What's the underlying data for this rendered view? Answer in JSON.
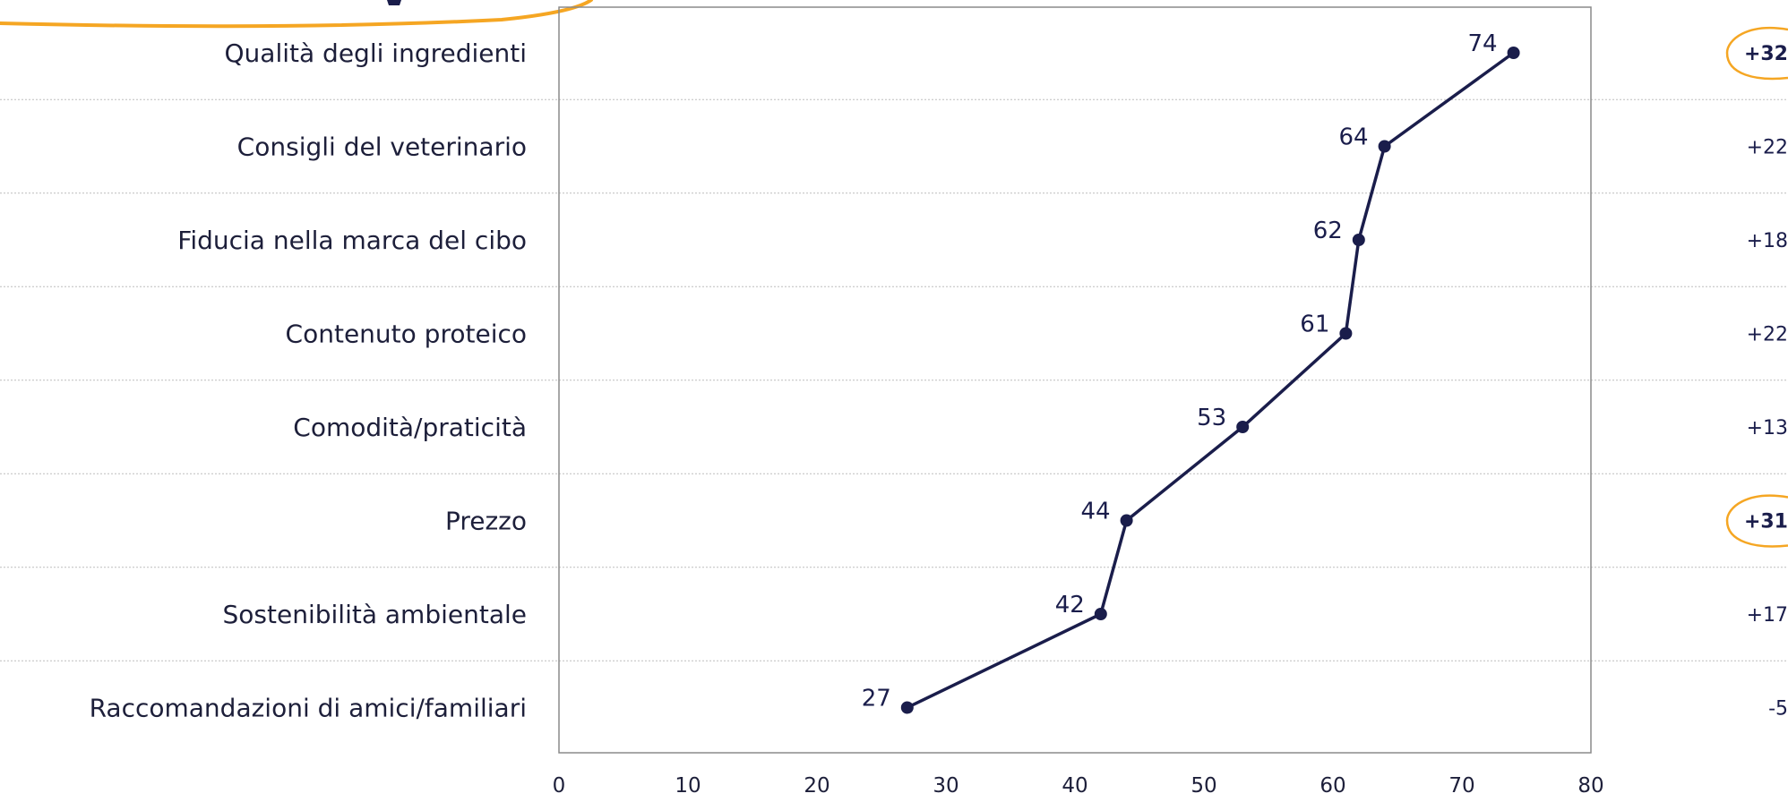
{
  "colors": {
    "line": "#1a1d4b",
    "text": "#1d1f3a",
    "accent": "#f5a623",
    "grid": "#bdbdbd",
    "frame": "#8a8a8a"
  },
  "chart_data": {
    "type": "line",
    "orientation": "horizontal",
    "title": "",
    "xlabel": "",
    "ylabel": "",
    "xlim": [
      0,
      80
    ],
    "x_ticks": [
      0,
      10,
      20,
      30,
      40,
      50,
      60,
      70,
      80
    ],
    "categories": [
      "Qualità degli ingredienti",
      "Consigli del veterinario",
      "Fiducia nella marca del cibo",
      "Contenuto proteico",
      "Comodità/praticità",
      "Prezzo",
      "Sostenibilità ambientale",
      "Raccomandazioni di amici/familiari"
    ],
    "series": [
      {
        "values": [
          74,
          64,
          62,
          61,
          53,
          44,
          42,
          27
        ]
      }
    ],
    "differences": [
      "+32",
      "+22",
      "+18",
      "+22",
      "+13",
      "+31",
      "+17",
      "-5"
    ],
    "highlighted_differences": [
      0,
      5
    ],
    "grid": "horizontal dotted separators",
    "legend": "none"
  }
}
